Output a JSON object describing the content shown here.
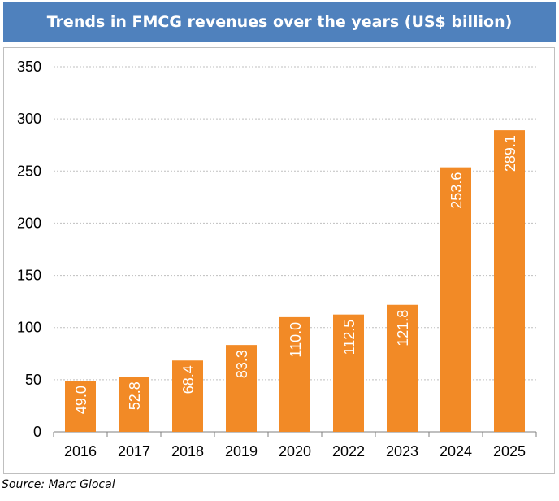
{
  "chart_data": {
    "type": "bar",
    "title": "Trends in FMCG revenues over the years (US$ billion)",
    "categories": [
      "2016",
      "2017",
      "2018",
      "2019",
      "2020",
      "2022",
      "2023",
      "2024",
      "2025"
    ],
    "values": [
      49.0,
      52.8,
      68.4,
      83.3,
      110.0,
      112.5,
      121.8,
      253.6,
      289.1
    ],
    "data_labels": [
      "49.0",
      "52.8",
      "68.4",
      "83.3",
      "110.0",
      "112.5",
      "121.8",
      "253.6",
      "289.1"
    ],
    "y_ticks": [
      "0",
      "50",
      "100",
      "150",
      "200",
      "250",
      "300",
      "350"
    ],
    "ylim": [
      0,
      350
    ],
    "grid": true,
    "legend": "none",
    "colors": {
      "bar": "#f28a26",
      "header": "#4f81bd",
      "grid": "#bfbfbf",
      "axis": "#7f7f7f"
    }
  },
  "source": "Source: Marc Glocal"
}
